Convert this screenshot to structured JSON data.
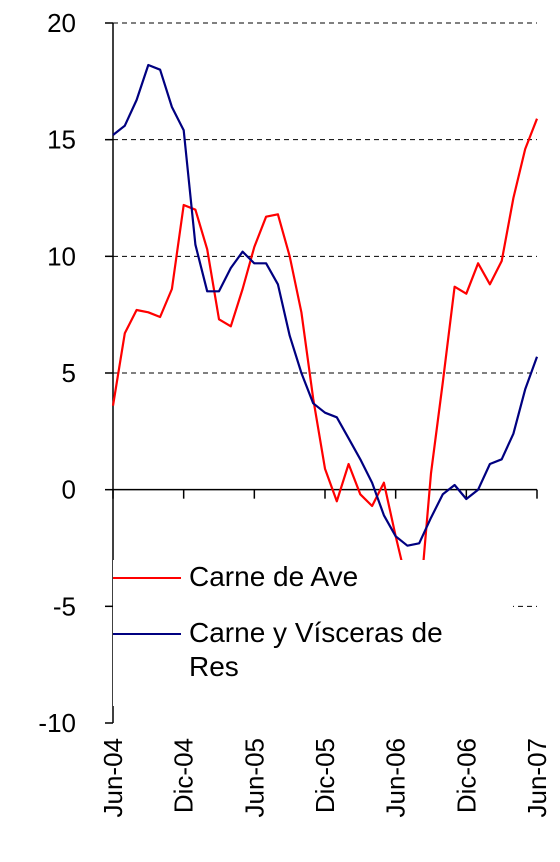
{
  "chart_data": {
    "type": "line",
    "categories": [
      "Jun-04",
      null,
      null,
      null,
      null,
      null,
      "Dic-04",
      null,
      null,
      null,
      null,
      null,
      "Jun-05",
      null,
      null,
      null,
      null,
      null,
      "Dic-05",
      null,
      null,
      null,
      null,
      null,
      "Jun-06",
      null,
      null,
      null,
      null,
      null,
      "Dic-06",
      null,
      null,
      null,
      null,
      null,
      "Jun-07"
    ],
    "series": [
      {
        "name": "Carne de Ave",
        "color": "#ff0000",
        "values": [
          3.6,
          6.7,
          7.7,
          7.6,
          7.4,
          8.6,
          12.2,
          12.0,
          10.3,
          7.3,
          7.0,
          8.6,
          10.4,
          11.7,
          11.8,
          10.0,
          7.6,
          3.9,
          0.9,
          -0.5,
          1.1,
          -0.2,
          -0.7,
          0.3,
          -2.0,
          -4.1,
          -5.2,
          0.7,
          4.6,
          8.7,
          8.4,
          9.7,
          8.8,
          9.8,
          12.5,
          14.6,
          15.9
        ]
      },
      {
        "name": "Carne y Vísceras de Res",
        "color": "#000080",
        "values": [
          15.2,
          15.6,
          16.7,
          18.2,
          18.0,
          16.4,
          15.4,
          10.5,
          8.5,
          8.5,
          9.5,
          10.2,
          9.7,
          9.7,
          8.8,
          6.6,
          5.0,
          3.7,
          3.3,
          3.1,
          2.2,
          1.3,
          0.3,
          -1.1,
          -2.0,
          -2.4,
          -2.3,
          -1.2,
          -0.2,
          0.2,
          -0.4,
          0.0,
          1.1,
          1.3,
          2.4,
          4.3,
          5.7
        ]
      }
    ],
    "ylim": [
      -10,
      20
    ],
    "yticks": [
      -10,
      -5,
      0,
      5,
      10,
      15,
      20
    ],
    "grid": true,
    "legend": "lower left"
  }
}
